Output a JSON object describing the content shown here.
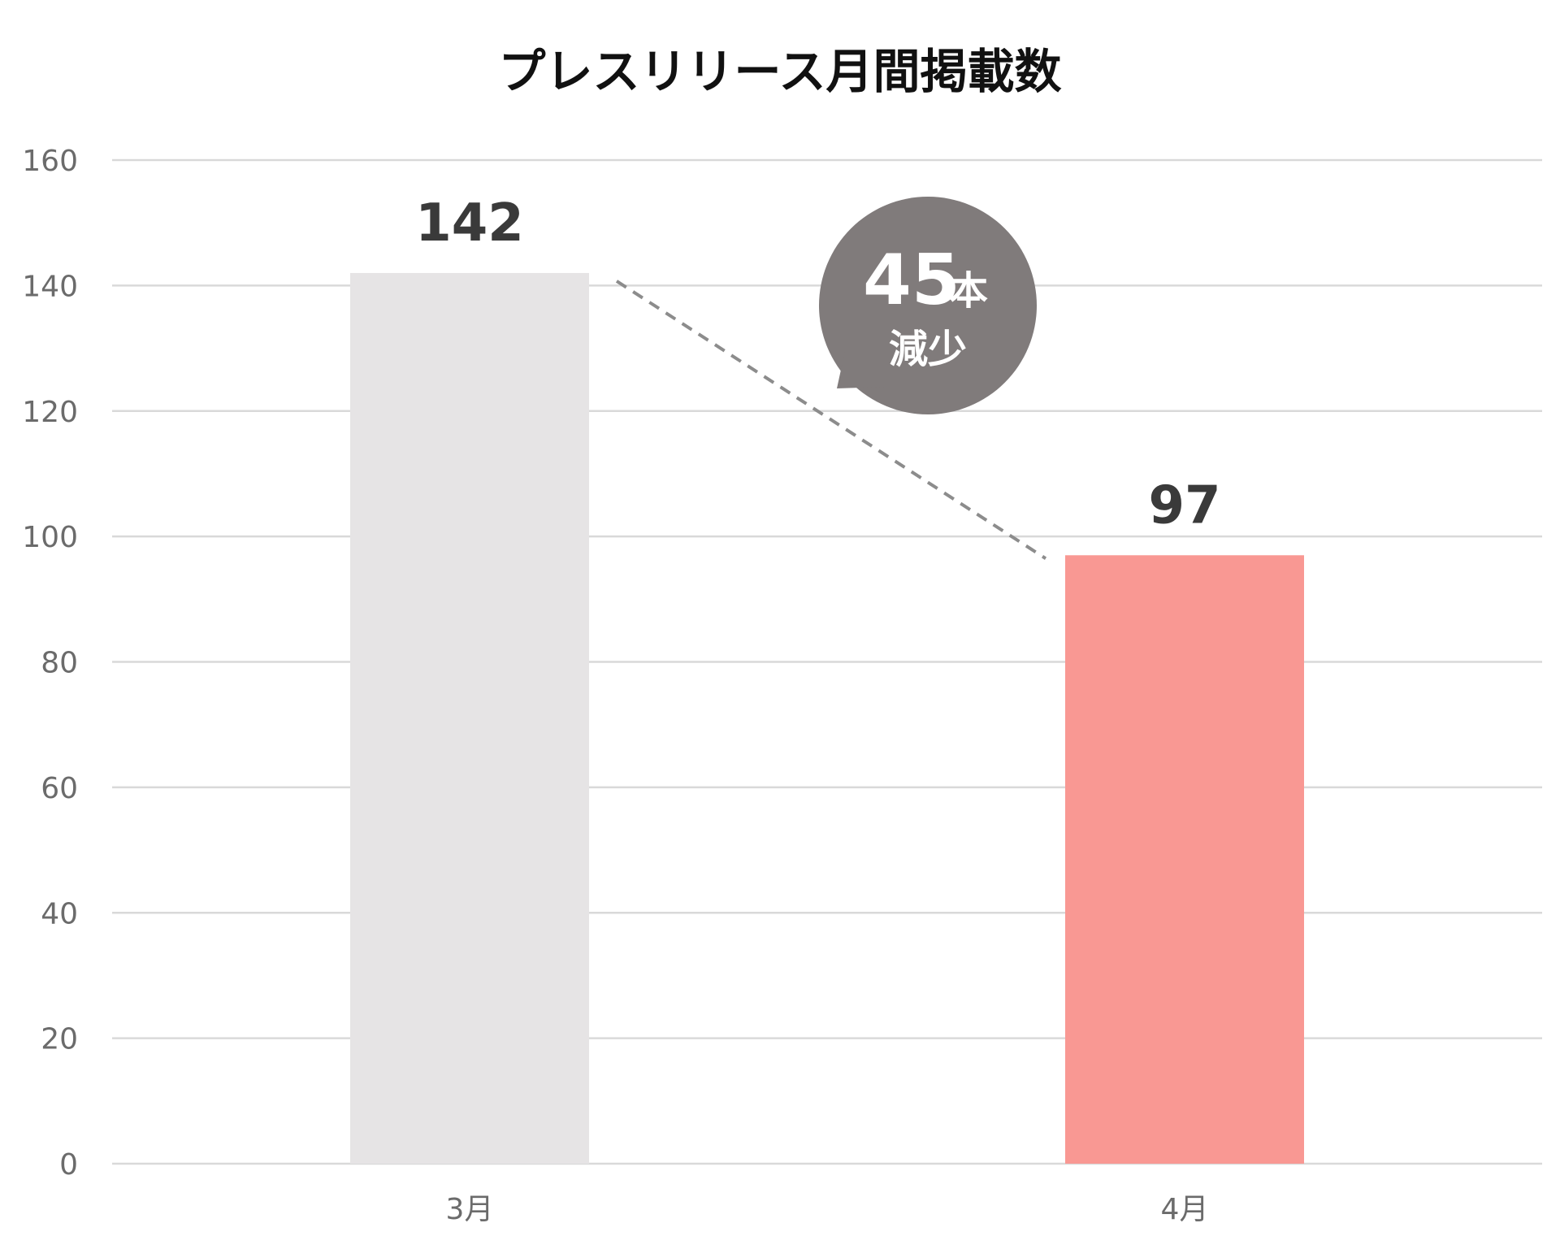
{
  "chart_data": {
    "type": "bar",
    "title": "プレスリリース月間掲載数",
    "categories": [
      "3月",
      "4月"
    ],
    "values": [
      142,
      97
    ],
    "data_labels": [
      "142",
      "97"
    ],
    "bar_colors": [
      "#e6e4e5",
      "#f99893"
    ],
    "ylim": [
      0,
      160
    ],
    "y_ticks": [
      0,
      20,
      40,
      60,
      80,
      100,
      120,
      140,
      160
    ],
    "grid": true,
    "xlabel": "",
    "ylabel": "",
    "annotation": {
      "number": "45",
      "unit": "本",
      "text": "減少",
      "color": "#807b7b"
    }
  }
}
